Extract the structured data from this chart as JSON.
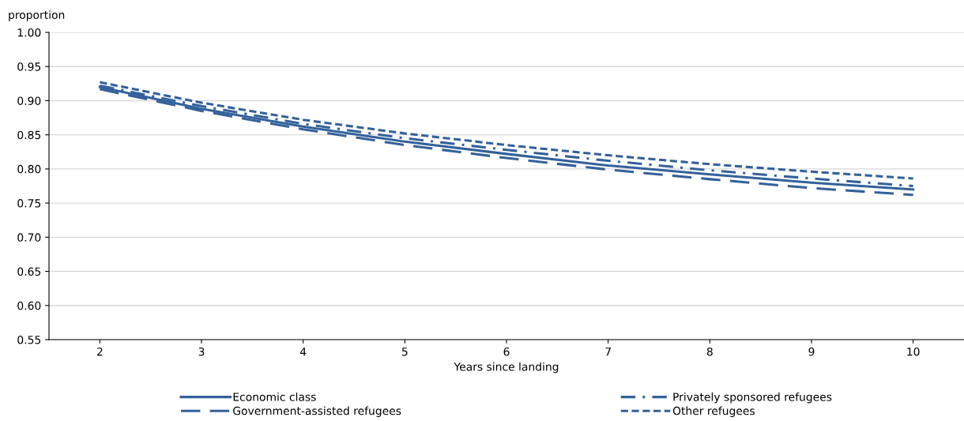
{
  "chart_data": {
    "type": "line",
    "ylabel": "proportion",
    "xlabel": "Years since landing",
    "x": [
      2,
      3,
      4,
      5,
      6,
      7,
      8,
      9,
      10
    ],
    "series": [
      {
        "name": "Economic class",
        "color": "#33619b",
        "line_style": "solid",
        "values": [
          0.92,
          0.888,
          0.862,
          0.84,
          0.822,
          0.805,
          0.792,
          0.78,
          0.77
        ]
      },
      {
        "name": "Government-assisted refugees",
        "color": "#33619b",
        "line_style": "longdash",
        "values": [
          0.917,
          0.885,
          0.858,
          0.835,
          0.816,
          0.799,
          0.785,
          0.772,
          0.762
        ]
      },
      {
        "name": "Privately sponsored refugees",
        "color": "#33619b",
        "line_style": "dashdot",
        "values": [
          0.922,
          0.892,
          0.866,
          0.845,
          0.828,
          0.812,
          0.798,
          0.786,
          0.775
        ]
      },
      {
        "name": "Other refugees",
        "color": "#33619b",
        "line_style": "dashed",
        "values": [
          0.927,
          0.897,
          0.872,
          0.852,
          0.835,
          0.82,
          0.807,
          0.796,
          0.786
        ]
      }
    ],
    "xlim": [
      1.5,
      10.5
    ],
    "xticks": [
      2,
      3,
      4,
      5,
      6,
      7,
      8,
      9,
      10
    ],
    "ylim": [
      0.55,
      1.0
    ],
    "yticks": [
      {
        "value": 0.55,
        "label": "0.55"
      },
      {
        "value": 0.6,
        "label": "0.60"
      },
      {
        "value": 0.65,
        "label": "0.65"
      },
      {
        "value": 0.7,
        "label": "0.70"
      },
      {
        "value": 0.75,
        "label": "0.75"
      },
      {
        "value": 0.8,
        "label": "0.80"
      },
      {
        "value": 0.85,
        "label": "0.85"
      },
      {
        "value": 0.9,
        "label": "0.90"
      },
      {
        "value": 0.95,
        "label": "0.95"
      },
      {
        "value": 1.0,
        "label": "1.00"
      }
    ],
    "grid": "y",
    "legend": "bottom",
    "marker": "none"
  }
}
